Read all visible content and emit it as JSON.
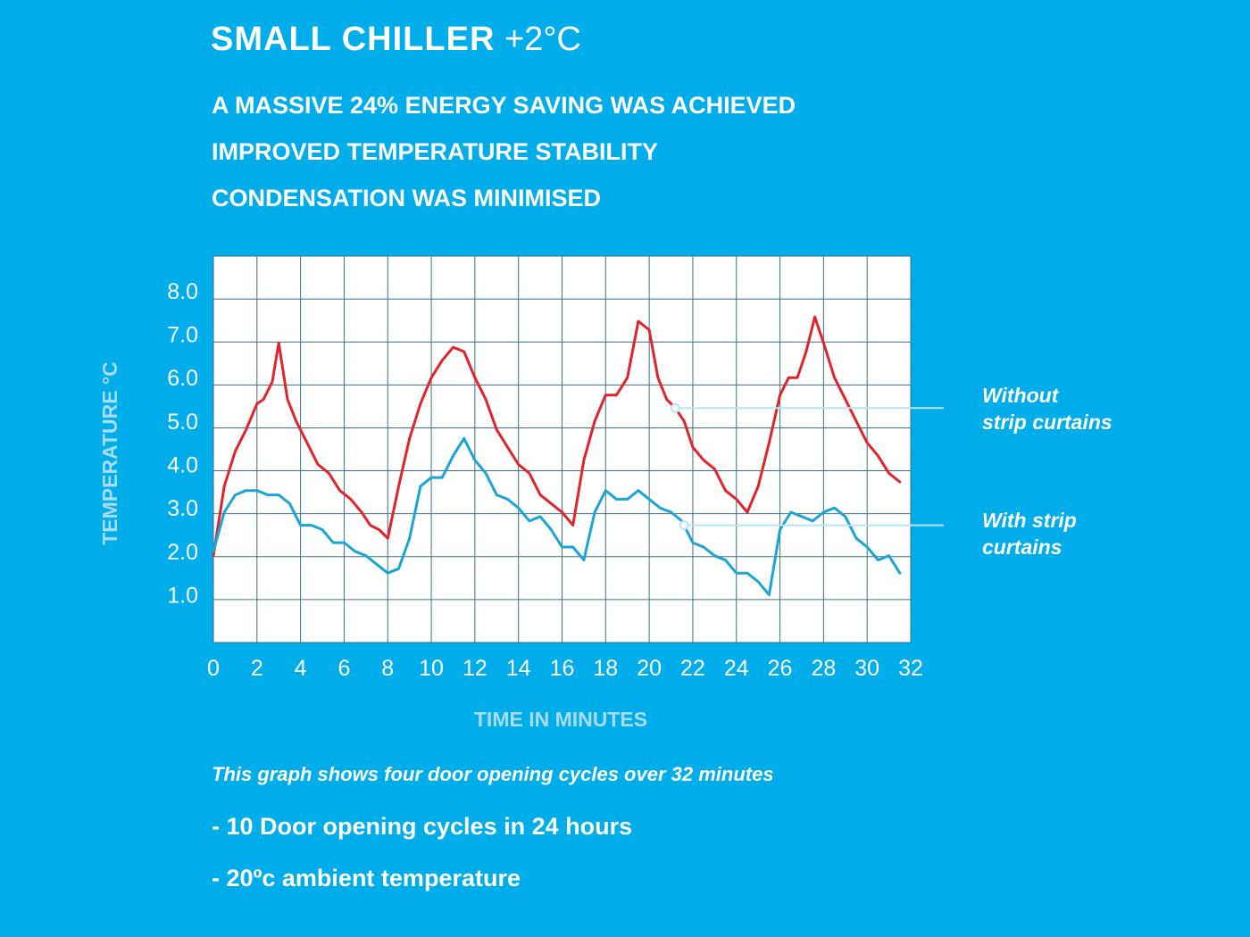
{
  "header": {
    "title_main": "SMALL CHILLER",
    "title_sub": "+2°C"
  },
  "highlights": [
    "A MASSIVE 24% ENERGY SAVING WAS ACHIEVED",
    "IMPROVED TEMPERATURE STABILITY",
    "CONDENSATION WAS MINIMISED"
  ],
  "colors": {
    "background": "#00adeb",
    "plot_background": "#ffffff",
    "grid": "#3d6f8c",
    "axis_label": "#a8dcf3",
    "without_curtains": "#e2232b",
    "with_curtains": "#1aa5d6",
    "callout_line": "#b7e4f6"
  },
  "chart_data": {
    "type": "line",
    "xlabel": "TIME IN MINUTES",
    "ylabel": "TEMPERATURE °C",
    "xlim": [
      0,
      32
    ],
    "ylim": [
      -0.1,
      8.8
    ],
    "x_ticks": [
      0,
      2,
      4,
      6,
      8,
      10,
      12,
      14,
      16,
      18,
      20,
      22,
      24,
      26,
      28,
      30,
      32
    ],
    "x_tick_labels": [
      "0",
      "2",
      "4",
      "6",
      "8",
      "10",
      "12",
      "14",
      "16",
      "18",
      "20",
      "22",
      "24",
      "26",
      "28",
      "30",
      "32"
    ],
    "y_ticks": [
      1,
      2,
      3,
      4,
      5,
      6,
      7,
      8
    ],
    "y_tick_labels": [
      "1.0",
      "2.0",
      "3.0",
      "4.0",
      "5.0",
      "6.0",
      "7.0",
      "8.0"
    ],
    "grid": true,
    "series": [
      {
        "name": "Without strip curtains",
        "color": "#e2232b",
        "x": [
          0,
          0.5,
          1,
          1.5,
          2,
          2.3,
          2.7,
          3,
          3.4,
          3.8,
          4.3,
          4.8,
          5.3,
          5.8,
          6.3,
          6.8,
          7.2,
          7.6,
          8,
          8.5,
          9,
          9.5,
          10,
          10.5,
          11,
          11.5,
          12,
          12.5,
          13,
          13.5,
          14,
          14.5,
          15,
          15.5,
          16,
          16.5,
          17,
          17.5,
          18,
          18.5,
          19,
          19.5,
          20,
          20.4,
          20.8,
          21.2,
          21.6,
          22,
          22.5,
          23,
          23.5,
          24,
          24.5,
          25,
          25.5,
          26,
          26.4,
          26.8,
          27.2,
          27.6,
          28,
          28.5,
          29,
          29.5,
          30,
          30.5,
          31,
          31.5
        ],
        "y": [
          1.9,
          3.5,
          4.3,
          4.8,
          5.4,
          5.5,
          5.9,
          6.8,
          5.5,
          5.0,
          4.5,
          4.0,
          3.8,
          3.4,
          3.2,
          2.9,
          2.6,
          2.5,
          2.3,
          3.5,
          4.6,
          5.4,
          6.0,
          6.4,
          6.7,
          6.6,
          6.0,
          5.5,
          4.8,
          4.4,
          4.0,
          3.8,
          3.3,
          3.1,
          2.9,
          2.6,
          4.1,
          5.0,
          5.6,
          5.6,
          6.0,
          7.3,
          7.1,
          6.0,
          5.5,
          5.3,
          5.0,
          4.4,
          4.1,
          3.9,
          3.4,
          3.2,
          2.9,
          3.5,
          4.5,
          5.6,
          6.0,
          6.0,
          6.6,
          7.4,
          6.8,
          6.0,
          5.5,
          5.0,
          4.5,
          4.2,
          3.8,
          3.6
        ],
        "annotation": "Without\nstrip curtains"
      },
      {
        "name": "With strip curtains",
        "color": "#1aa5d6",
        "x": [
          0,
          0.5,
          1,
          1.5,
          2,
          2.5,
          3,
          3.5,
          4,
          4.5,
          5,
          5.5,
          6,
          6.5,
          7,
          7.5,
          8,
          8.5,
          9,
          9.5,
          10,
          10.5,
          11,
          11.5,
          12,
          12.5,
          13,
          13.5,
          14,
          14.5,
          15,
          15.5,
          16,
          16.5,
          17,
          17.5,
          18,
          18.5,
          19,
          19.5,
          20,
          20.5,
          21,
          21.5,
          22,
          22.5,
          23,
          23.5,
          24,
          24.5,
          25,
          25.5,
          26,
          26.5,
          27,
          27.5,
          28,
          28.5,
          29,
          29.5,
          30,
          30.5,
          31,
          31.5
        ],
        "y": [
          2.0,
          2.9,
          3.3,
          3.4,
          3.4,
          3.3,
          3.3,
          3.1,
          2.6,
          2.6,
          2.5,
          2.2,
          2.2,
          2.0,
          1.9,
          1.7,
          1.5,
          1.6,
          2.3,
          3.5,
          3.7,
          3.7,
          4.2,
          4.6,
          4.1,
          3.8,
          3.3,
          3.2,
          3.0,
          2.7,
          2.8,
          2.5,
          2.1,
          2.1,
          1.8,
          2.9,
          3.4,
          3.2,
          3.2,
          3.4,
          3.2,
          3.0,
          2.9,
          2.7,
          2.2,
          2.1,
          1.9,
          1.8,
          1.5,
          1.5,
          1.3,
          1.0,
          2.5,
          2.9,
          2.8,
          2.7,
          2.9,
          3.0,
          2.8,
          2.3,
          2.1,
          1.8,
          1.9,
          1.5
        ],
        "annotation": "With strip\ncurtains"
      }
    ]
  },
  "footer": {
    "caption": "This graph shows four door opening cycles over 32 minutes",
    "notes": [
      "- 10 Door opening cycles in 24 hours",
      "- 20ºc ambient temperature"
    ]
  }
}
